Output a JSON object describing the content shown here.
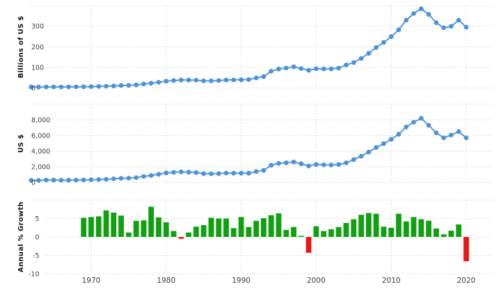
{
  "chart_data": [
    {
      "type": "line",
      "id": "gdp-billions",
      "ylabel": "Billions of US $",
      "ylim": [
        0,
        400
      ],
      "yticks": [
        0,
        100,
        200,
        300
      ],
      "years": {
        "start": 1962,
        "end": 2020,
        "step": 1
      },
      "values": [
        4.9,
        4.8,
        5.5,
        5.8,
        5.5,
        5.7,
        6.1,
        6.4,
        7.2,
        7.8,
        8.7,
        10.3,
        12.4,
        13.1,
        15.3,
        19.5,
        23.3,
        27.9,
        33.4,
        36.4,
        39.0,
        38.7,
        38.3,
        35.0,
        34.9,
        36.4,
        39.2,
        39.5,
        40.3,
        41.2,
        49.3,
        55.8,
        81.7,
        92.5,
        97.2,
        103.0,
        95.0,
        86.2,
        94.0,
        93.0,
        93.0,
        97.0,
        112.0,
        124.0,
        144.0,
        169.0,
        197.0,
        222.0,
        250.0,
        283.0,
        330.0,
        362.0,
        385.0,
        358.0,
        318.0,
        293.0,
        300.0,
        330.0,
        296.0
      ]
    },
    {
      "type": "line",
      "id": "gdp-per-capita",
      "ylabel": "US $",
      "ylim": [
        0,
        10000
      ],
      "yticks": [
        0,
        2000,
        4000,
        6000,
        8000
      ],
      "years": {
        "start": 1962,
        "end": 2020,
        "step": 1
      },
      "values": [
        270,
        260,
        300,
        290,
        280,
        285,
        295,
        310,
        340,
        360,
        390,
        450,
        525,
        540,
        615,
        765,
        890,
        1040,
        1215,
        1290,
        1350,
        1310,
        1265,
        1130,
        1105,
        1130,
        1190,
        1175,
        1180,
        1180,
        1385,
        1535,
        2200,
        2440,
        2505,
        2610,
        2385,
        2105,
        2290,
        2250,
        2220,
        2290,
        2500,
        2920,
        3350,
        3880,
        4460,
        4960,
        5510,
        6160,
        7100,
        7700,
        8200,
        7300,
        6350,
        5700,
        6050,
        6500,
        5700
      ]
    },
    {
      "type": "bar",
      "id": "annual-growth",
      "ylabel": "Annual % Growth",
      "ylim": [
        -10,
        10
      ],
      "yticks": [
        5,
        0,
        -5,
        -10
      ],
      "years": {
        "start": 1969,
        "end": 2020,
        "step": 1
      },
      "values": [
        5.2,
        5.4,
        5.6,
        7.2,
        6.6,
        5.8,
        1.2,
        4.4,
        4.5,
        8.2,
        5.3,
        4.0,
        1.6,
        -0.5,
        1.2,
        2.8,
        3.2,
        5.2,
        5.0,
        5.0,
        2.4,
        5.4,
        2.7,
        4.4,
        5.1,
        5.9,
        6.4,
        1.9,
        2.7,
        0.3,
        -4.3,
        2.9,
        1.6,
        2.1,
        2.7,
        3.8,
        4.8,
        6.0,
        6.5,
        6.3,
        2.8,
        2.5,
        6.3,
        4.2,
        5.4,
        4.8,
        4.4,
        2.3,
        0.7,
        1.7,
        3.4,
        -6.6
      ]
    }
  ],
  "x_axis": {
    "tick_labels": [
      "1970",
      "1980",
      "1990",
      "2000",
      "2010",
      "2020"
    ]
  },
  "colors": {
    "line": "#4f93d4",
    "bar_positive": "#10a010",
    "bar_negative": "#ee1414",
    "grid": "#d9d9d9",
    "tick_text": "#3d3d3d",
    "axis_title_text": "#151515",
    "background": "#ffffff"
  }
}
